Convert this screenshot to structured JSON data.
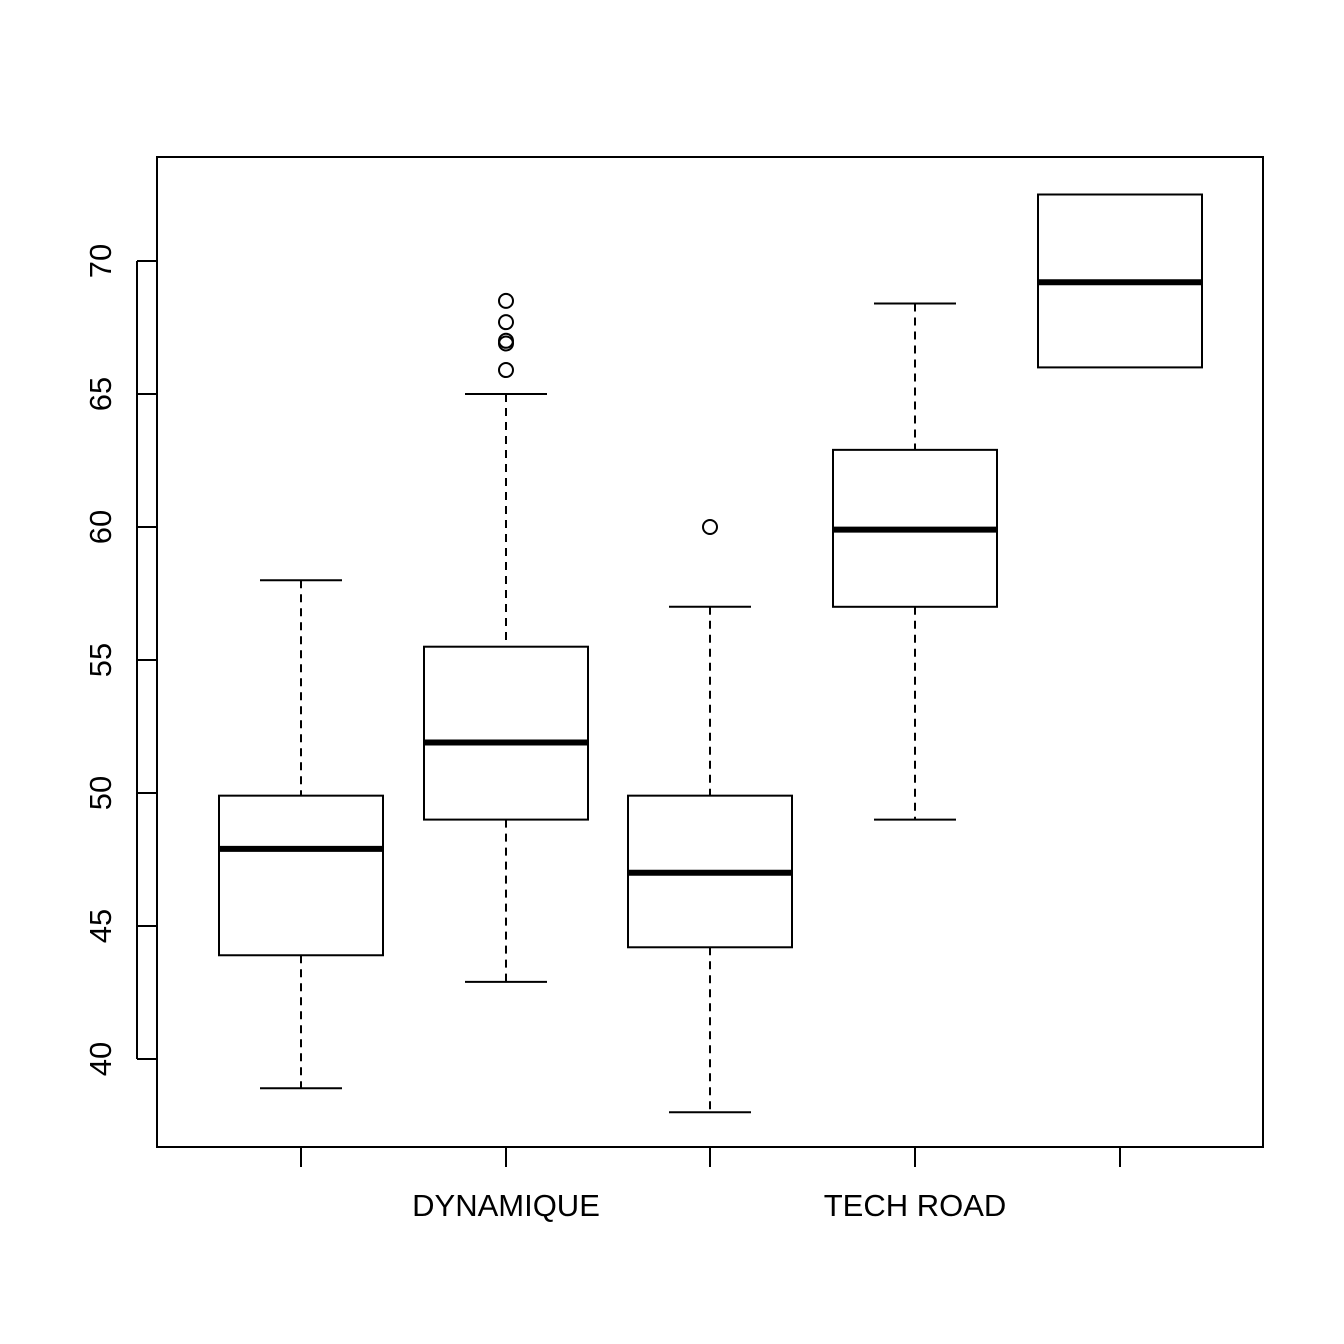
{
  "chart_data": {
    "type": "boxplot",
    "title": "",
    "xlabel": "",
    "ylabel": "",
    "ylim": [
      36.7,
      73.9
    ],
    "y_ticks": [
      40,
      45,
      50,
      55,
      60,
      65,
      70
    ],
    "x_tick_labels": [
      "",
      "DYNAMIQUE",
      "",
      "TECH ROAD",
      ""
    ],
    "boxes": [
      {
        "category": "",
        "whisker_low": 38.9,
        "q1": 43.9,
        "median": 47.9,
        "q3": 49.9,
        "whisker_high": 58.0,
        "outliers": []
      },
      {
        "category": "DYNAMIQUE",
        "whisker_low": 42.9,
        "q1": 49.0,
        "median": 51.9,
        "q3": 55.5,
        "whisker_high": 65.0,
        "outliers": [
          65.9,
          66.9,
          67.0,
          67.7,
          68.5
        ]
      },
      {
        "category": "",
        "whisker_low": 38.0,
        "q1": 44.2,
        "median": 47.0,
        "q3": 49.9,
        "whisker_high": 57.0,
        "outliers": [
          60.0
        ]
      },
      {
        "category": "TECH ROAD",
        "whisker_low": 49.0,
        "q1": 57.0,
        "median": 59.9,
        "q3": 62.9,
        "whisker_high": 68.4,
        "outliers": []
      },
      {
        "category": "",
        "whisker_low": 66.0,
        "q1": 66.0,
        "median": 69.2,
        "q3": 72.5,
        "whisker_high": 72.5,
        "outliers": []
      }
    ],
    "grid": false,
    "legend": "none"
  }
}
